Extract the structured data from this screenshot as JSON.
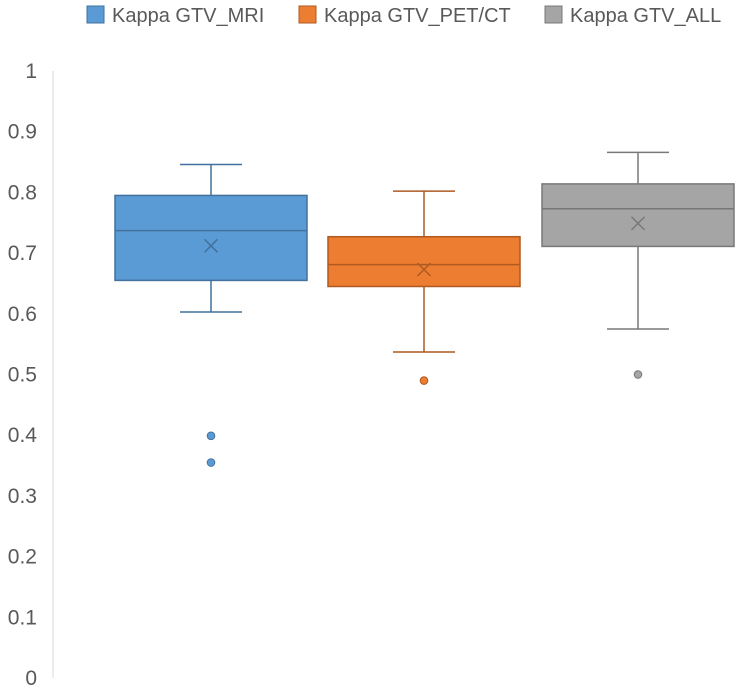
{
  "chart_data": {
    "type": "boxplot",
    "title": "",
    "xlabel": "",
    "ylabel": "",
    "ylim": [
      0,
      1
    ],
    "yticks": [
      "0",
      "0.1",
      "0.2",
      "0.3",
      "0.4",
      "0.5",
      "0.6",
      "0.7",
      "0.8",
      "0.9",
      "1"
    ],
    "legend_position": "top",
    "series": [
      {
        "name": "Kappa GTV_MRI",
        "color": "#5B9BD5",
        "stroke": "#41719C",
        "whisker_low": 0.603,
        "q1": 0.655,
        "median": 0.737,
        "q3": 0.795,
        "whisker_high": 0.846,
        "mean": 0.712,
        "outliers": [
          0.399,
          0.355
        ]
      },
      {
        "name": "Kappa GTV_PET/CT",
        "color": "#ED7D31",
        "stroke": "#AE5A21",
        "whisker_low": 0.537,
        "q1": 0.645,
        "median": 0.681,
        "q3": 0.727,
        "whisker_high": 0.802,
        "mean": 0.673,
        "outliers": [
          0.49
        ]
      },
      {
        "name": "Kappa GTV_ALL",
        "color": "#A5A5A5",
        "stroke": "#787878",
        "whisker_low": 0.575,
        "q1": 0.711,
        "median": 0.773,
        "q3": 0.814,
        "whisker_high": 0.866,
        "mean": 0.749,
        "outliers": [
          0.5
        ]
      }
    ]
  }
}
